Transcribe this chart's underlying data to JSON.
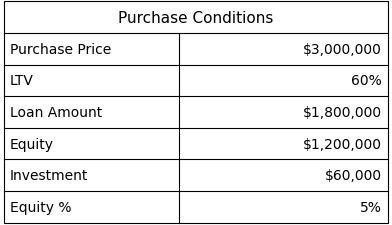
{
  "title": "Purchase Conditions",
  "rows": [
    [
      "Purchase Price",
      "$3,000,000"
    ],
    [
      "LTV",
      "60%"
    ],
    [
      "Loan Amount",
      "$1,800,000"
    ],
    [
      "Equity",
      "$1,200,000"
    ],
    [
      "Investment",
      "$60,000"
    ],
    [
      "Equity %",
      "5%"
    ]
  ],
  "bg_color": "#ffffff",
  "border_color": "#000000",
  "text_color": "#000000",
  "title_fontsize": 11,
  "cell_fontsize": 10,
  "col_split": 0.455,
  "fig_width": 3.92,
  "fig_height": 2.26,
  "dpi": 100
}
